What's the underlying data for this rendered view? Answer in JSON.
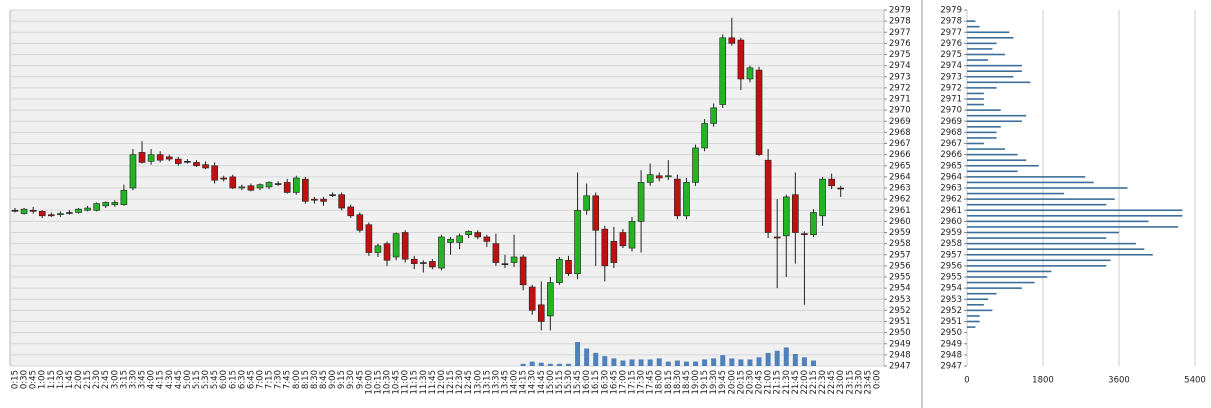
{
  "chart_data": [
    {
      "type": "candlestick",
      "categories": [
        "0:15",
        "0:30",
        "0:45",
        "1:00",
        "1:15",
        "1:30",
        "1:45",
        "2:00",
        "2:15",
        "2:30",
        "2:45",
        "3:00",
        "3:15",
        "3:30",
        "3:45",
        "4:00",
        "4:15",
        "4:30",
        "4:45",
        "5:00",
        "5:15",
        "5:30",
        "5:45",
        "6:00",
        "6:15",
        "6:30",
        "6:45",
        "7:00",
        "7:15",
        "7:30",
        "7:45",
        "8:00",
        "8:15",
        "8:30",
        "8:45",
        "9:00",
        "9:15",
        "9:30",
        "9:45",
        "10:00",
        "10:15",
        "10:30",
        "10:45",
        "11:00",
        "11:15",
        "11:30",
        "11:45",
        "12:00",
        "12:15",
        "12:30",
        "12:45",
        "13:00",
        "13:15",
        "13:30",
        "13:45",
        "14:00",
        "14:15",
        "14:30",
        "14:45",
        "15:00",
        "15:15",
        "15:30",
        "15:45",
        "16:00",
        "16:15",
        "16:30",
        "16:45",
        "17:00",
        "17:15",
        "17:30",
        "17:45",
        "18:00",
        "18:15",
        "18:30",
        "18:45",
        "19:00",
        "19:15",
        "19:30",
        "19:45",
        "20:00",
        "20:15",
        "20:30",
        "20:45",
        "21:00",
        "21:15",
        "21:30",
        "21:45",
        "22:00",
        "22:15",
        "22:30",
        "22:45",
        "23:00",
        "23:15",
        "23:30",
        "23:45",
        "0:00"
      ],
      "ohlc": [
        [
          2961,
          2961.2,
          2960.8,
          2961
        ],
        [
          2960.7,
          2961.2,
          2960.6,
          2961.1
        ],
        [
          2961,
          2961.3,
          2960.7,
          2960.9
        ],
        [
          2960.9,
          2961,
          2960.3,
          2960.5
        ],
        [
          2960.6,
          2960.8,
          2960.4,
          2960.5
        ],
        [
          2960.6,
          2960.9,
          2960.4,
          2960.7
        ],
        [
          2960.8,
          2961,
          2960.6,
          2960.8
        ],
        [
          2960.8,
          2961.2,
          2960.7,
          2961.1
        ],
        [
          2961,
          2961.4,
          2960.9,
          2961.2
        ],
        [
          2961,
          2961.7,
          2960.9,
          2961.6
        ],
        [
          2961.4,
          2961.8,
          2961.2,
          2961.7
        ],
        [
          2961.5,
          2961.9,
          2961.3,
          2961.7
        ],
        [
          2961.5,
          2963.3,
          2961.4,
          2962.8
        ],
        [
          2963,
          2966.5,
          2962.8,
          2966
        ],
        [
          2966.2,
          2967.2,
          2965.2,
          2965.3
        ],
        [
          2965.4,
          2966.5,
          2965.1,
          2966
        ],
        [
          2966,
          2966.3,
          2965.3,
          2965.5
        ],
        [
          2965.8,
          2966,
          2965.4,
          2965.6
        ],
        [
          2965.6,
          2965.8,
          2965,
          2965.2
        ],
        [
          2965.4,
          2965.6,
          2965.2,
          2965.4
        ],
        [
          2965.3,
          2965.5,
          2964.9,
          2965
        ],
        [
          2965.1,
          2965.4,
          2964.7,
          2964.8
        ],
        [
          2965,
          2965.3,
          2963.4,
          2963.7
        ],
        [
          2963.9,
          2964.1,
          2963.6,
          2963.8
        ],
        [
          2964,
          2964.2,
          2962.9,
          2963
        ],
        [
          2963,
          2963.3,
          2962.8,
          2963.1
        ],
        [
          2963.2,
          2963.4,
          2962.7,
          2962.8
        ],
        [
          2963,
          2963.4,
          2962.8,
          2963.3
        ],
        [
          2963.1,
          2963.6,
          2962.9,
          2963.5
        ],
        [
          2963.4,
          2963.6,
          2963.2,
          2963.4
        ],
        [
          2963.5,
          2963.8,
          2962.5,
          2962.6
        ],
        [
          2962.6,
          2964.1,
          2962.4,
          2963.9
        ],
        [
          2963.8,
          2964,
          2961.6,
          2961.8
        ],
        [
          2962,
          2962.2,
          2961.6,
          2961.9
        ],
        [
          2962,
          2962.2,
          2961.4,
          2961.8
        ],
        [
          2962.4,
          2962.6,
          2962.2,
          2962.4
        ],
        [
          2962.4,
          2962.6,
          2961,
          2961.2
        ],
        [
          2961.3,
          2961.5,
          2960.3,
          2960.5
        ],
        [
          2960.6,
          2960.8,
          2959,
          2959.2
        ],
        [
          2959.7,
          2959.9,
          2956.9,
          2957.2
        ],
        [
          2957.2,
          2958,
          2956.8,
          2957.8
        ],
        [
          2958,
          2958.2,
          2956,
          2956.5
        ],
        [
          2956.8,
          2959,
          2956.5,
          2958.9
        ],
        [
          2959,
          2959.2,
          2956.3,
          2956.6
        ],
        [
          2956.6,
          2956.9,
          2955.7,
          2956.2
        ],
        [
          2956.3,
          2956.5,
          2955.4,
          2956.3
        ],
        [
          2956.4,
          2956.6,
          2955.7,
          2955.9
        ],
        [
          2955.8,
          2958.8,
          2955.6,
          2958.6
        ],
        [
          2958.1,
          2958.6,
          2957,
          2958.4
        ],
        [
          2958.1,
          2958.9,
          2957.5,
          2958.7
        ],
        [
          2958.8,
          2959.2,
          2958.5,
          2959.1
        ],
        [
          2959,
          2959.2,
          2958.4,
          2958.6
        ],
        [
          2958.6,
          2958.8,
          2957.7,
          2958.2
        ],
        [
          2958,
          2958.9,
          2956,
          2956.3
        ],
        [
          2956.2,
          2957,
          2955.8,
          2956.2
        ],
        [
          2956.3,
          2958.8,
          2955.9,
          2956.8
        ],
        [
          2956.8,
          2957,
          2953.8,
          2954.3
        ],
        [
          2954.1,
          2954.3,
          2951.6,
          2952
        ],
        [
          2952.5,
          2954.6,
          2950.2,
          2951
        ],
        [
          2951.5,
          2955,
          2950.2,
          2954.5
        ],
        [
          2954.5,
          2956.8,
          2954.3,
          2956.6
        ],
        [
          2956.5,
          2956.9,
          2955.1,
          2955.3
        ],
        [
          2955.3,
          2964.4,
          2954.8,
          2961
        ],
        [
          2961,
          2963.4,
          2960.6,
          2962.3
        ],
        [
          2962.3,
          2962.6,
          2956,
          2959.2
        ],
        [
          2959.3,
          2959.6,
          2954.6,
          2956
        ],
        [
          2958.2,
          2959.5,
          2955.8,
          2956.3
        ],
        [
          2959,
          2959.3,
          2957.6,
          2957.8
        ],
        [
          2957.6,
          2960.4,
          2957.3,
          2960
        ],
        [
          2960,
          2964.6,
          2957.2,
          2963.5
        ],
        [
          2963.5,
          2965.2,
          2963.2,
          2964.2
        ],
        [
          2964.1,
          2964.4,
          2963.6,
          2963.9
        ],
        [
          2964,
          2965.5,
          2963.7,
          2964.1
        ],
        [
          2963.8,
          2964.2,
          2960.2,
          2960.5
        ],
        [
          2960.5,
          2963.9,
          2960.2,
          2963.5
        ],
        [
          2963.5,
          2966.9,
          2963.2,
          2966.6
        ],
        [
          2966.6,
          2969.2,
          2966.3,
          2968.8
        ],
        [
          2968.8,
          2970.6,
          2968.5,
          2970.2
        ],
        [
          2970.5,
          2976.8,
          2970.2,
          2976.5
        ],
        [
          2976.5,
          2978.3,
          2975.8,
          2976
        ],
        [
          2976.3,
          2976.5,
          2971.8,
          2972.8
        ],
        [
          2972.8,
          2974,
          2972.5,
          2973.8
        ],
        [
          2973.6,
          2973.9,
          2965.9,
          2966
        ],
        [
          2965.5,
          2966.5,
          2958.5,
          2959
        ],
        [
          2958.6,
          2962,
          2954,
          2958.5
        ],
        [
          2958.7,
          2962.4,
          2955,
          2962.2
        ],
        [
          2962.4,
          2964.4,
          2956.2,
          2959
        ],
        [
          2958.9,
          2959.1,
          2952.5,
          2958.8
        ],
        [
          2958.8,
          2961.1,
          2958.6,
          2960.8
        ],
        [
          2960.5,
          2964,
          2959.6,
          2963.8
        ],
        [
          2963.8,
          2964.3,
          2962.9,
          2963.2
        ],
        [
          2963,
          2963.2,
          2962.2,
          2963
        ],
        null,
        null,
        null,
        null
      ],
      "volume": [
        null,
        null,
        null,
        null,
        null,
        null,
        null,
        null,
        null,
        null,
        null,
        null,
        null,
        null,
        null,
        null,
        null,
        null,
        null,
        null,
        null,
        null,
        null,
        null,
        null,
        null,
        null,
        null,
        null,
        null,
        null,
        null,
        null,
        null,
        null,
        null,
        null,
        null,
        null,
        null,
        null,
        null,
        null,
        null,
        null,
        null,
        null,
        null,
        null,
        null,
        null,
        null,
        null,
        null,
        null,
        null,
        2,
        4,
        3,
        2,
        2,
        2,
        22,
        16,
        12,
        9,
        7,
        5,
        6,
        6,
        6,
        7,
        4,
        5,
        4,
        4,
        6,
        7,
        10,
        7,
        6,
        6,
        8,
        12,
        14,
        17,
        11,
        8,
        5,
        null,
        null,
        null,
        null,
        null,
        null,
        null
      ],
      "up_color": "#22b422",
      "down_color": "#c01010",
      "volume_color": "#4f81bd",
      "ylim": [
        2947,
        2979
      ],
      "yticks": [
        2947,
        2948,
        2949,
        2950,
        2951,
        2952,
        2953,
        2954,
        2955,
        2956,
        2957,
        2958,
        2959,
        2960,
        2961,
        2962,
        2963,
        2964,
        2965,
        2966,
        2967,
        2968,
        2969,
        2970,
        2971,
        2972,
        2973,
        2974,
        2975,
        2976,
        2977,
        2978,
        2979
      ],
      "grid": true
    },
    {
      "type": "volume-profile",
      "levels": [
        2978,
        2977.5,
        2977,
        2976.5,
        2976,
        2975.5,
        2975,
        2974.5,
        2974,
        2973.5,
        2973,
        2972.5,
        2972,
        2971.5,
        2971,
        2970.5,
        2970,
        2969.5,
        2969,
        2968.5,
        2968,
        2967.5,
        2967,
        2966.5,
        2966,
        2965.5,
        2965,
        2964.5,
        2964,
        2963.5,
        2963,
        2962.5,
        2962,
        2961.5,
        2961,
        2960.5,
        2960,
        2959.5,
        2959,
        2958.5,
        2958,
        2957.5,
        2957,
        2956.5,
        2956,
        2955.5,
        2955,
        2954.5,
        2954,
        2953.5,
        2953,
        2952.5,
        2952,
        2951.5,
        2951,
        2950.5
      ],
      "values": [
        200,
        300,
        1000,
        1100,
        700,
        600,
        900,
        500,
        1300,
        1300,
        1100,
        1500,
        700,
        400,
        400,
        400,
        800,
        1400,
        1300,
        800,
        700,
        700,
        400,
        900,
        1200,
        1400,
        1700,
        1200,
        2800,
        3000,
        3800,
        2300,
        3500,
        3300,
        5100,
        5100,
        4300,
        5000,
        3600,
        3300,
        4000,
        4200,
        4400,
        3400,
        3300,
        2000,
        1900,
        1600,
        1300,
        700,
        500,
        400,
        600,
        300,
        300,
        200
      ],
      "color": "#3d6e99",
      "xlim": [
        0,
        5400
      ],
      "xticks": [
        0,
        1800,
        3600,
        5400
      ],
      "ylim": [
        2947,
        2979
      ],
      "yticks": [
        2947,
        2948,
        2949,
        2950,
        2951,
        2952,
        2953,
        2954,
        2955,
        2956,
        2957,
        2958,
        2959,
        2960,
        2961,
        2962,
        2963,
        2964,
        2965,
        2966,
        2967,
        2968,
        2969,
        2970,
        2971,
        2972,
        2973,
        2974,
        2975,
        2976,
        2977,
        2978,
        2979
      ]
    }
  ]
}
